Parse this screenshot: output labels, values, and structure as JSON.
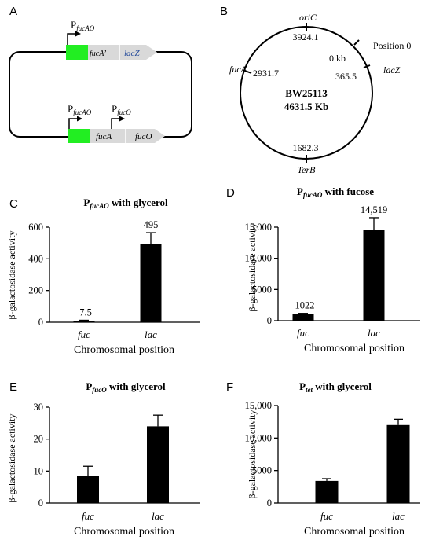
{
  "panels": {
    "A": "A",
    "B": "B",
    "C": "C",
    "D": "D",
    "E": "E",
    "F": "F"
  },
  "construct": {
    "top_promoter_base": "P",
    "top_promoter_sub": "fucAO",
    "top_gene1": "fucA’",
    "top_gene2": "lacZ",
    "bottom_promoter1_base": "P",
    "bottom_promoter1_sub": "fucAO",
    "bottom_promoter2_base": "P",
    "bottom_promoter2_sub": "fucO",
    "bottom_gene1": "fucA",
    "bottom_gene2": "fucO",
    "colors": {
      "promoter_box": "#22ee22",
      "gene_arrow": "#d9d9d9",
      "lacZ_text": "#2a4f9c"
    }
  },
  "chromosome": {
    "strain": "BW25113",
    "size": "4631.5 Kb",
    "oriC_label": "oriC",
    "oriC_value": "3924.1",
    "position0_label": "Position 0",
    "position0_value": "0 kb",
    "fucA_label": "fucA",
    "fucA_value": "2931.7",
    "lacZ_label": "lacZ",
    "lacZ_value": "365.5",
    "terB_label": "TerB",
    "terB_value": "1682.3"
  },
  "chart_data": [
    {
      "panel": "C",
      "type": "bar",
      "title_base": "P",
      "title_sub": "fucAO",
      "title_rest": " with glycerol",
      "categories": [
        "fuc",
        "lac"
      ],
      "values": [
        7.5,
        495
      ],
      "errors": [
        5,
        70
      ],
      "value_labels": [
        "7.5",
        "495"
      ],
      "ylim": [
        0,
        600
      ],
      "yticks": [
        0,
        200,
        400,
        600
      ],
      "ytick_labels": [
        "0",
        "200",
        "400",
        "600"
      ],
      "ylabel": "β-galactosidase activity",
      "xlabel": "Chromosomal position"
    },
    {
      "panel": "D",
      "type": "bar",
      "title_base": "P",
      "title_sub": "fucAO",
      "title_rest": " with fucose",
      "categories": [
        "fuc",
        "lac"
      ],
      "values": [
        1022,
        14519
      ],
      "errors": [
        150,
        2000
      ],
      "value_labels": [
        "1022",
        "14,519"
      ],
      "ylim": [
        0,
        15000
      ],
      "yticks": [
        0,
        5000,
        10000,
        15000
      ],
      "ytick_labels": [
        "0",
        "5000",
        "10,000",
        "15,000"
      ],
      "ylabel": "β-galactosidase activity",
      "xlabel": "Chromosomal position"
    },
    {
      "panel": "E",
      "type": "bar",
      "title_base": "P",
      "title_sub": "fucO",
      "title_rest": " with glycerol",
      "categories": [
        "fuc",
        "lac"
      ],
      "values": [
        8.5,
        24
      ],
      "errors": [
        3,
        3.5
      ],
      "value_labels": [
        "",
        ""
      ],
      "ylim": [
        0,
        30
      ],
      "yticks": [
        0,
        10,
        20,
        30
      ],
      "ytick_labels": [
        "0",
        "10",
        "20",
        "30"
      ],
      "ylabel": "β-galactosidase activity",
      "xlabel": "Chromosomal position"
    },
    {
      "panel": "F",
      "type": "bar",
      "title_base": "P",
      "title_sub": "tet",
      "title_rest": " with glycerol",
      "categories": [
        "fuc",
        "lac"
      ],
      "values": [
        3400,
        12000
      ],
      "errors": [
        350,
        900
      ],
      "value_labels": [
        "",
        ""
      ],
      "ylim": [
        0,
        15000
      ],
      "yticks": [
        0,
        5000,
        10000,
        15000
      ],
      "ytick_labels": [
        "0",
        "5000",
        "10,000",
        "15,000"
      ],
      "ylabel": "β-galactosidase activity",
      "xlabel": "Chromosomal position"
    }
  ]
}
